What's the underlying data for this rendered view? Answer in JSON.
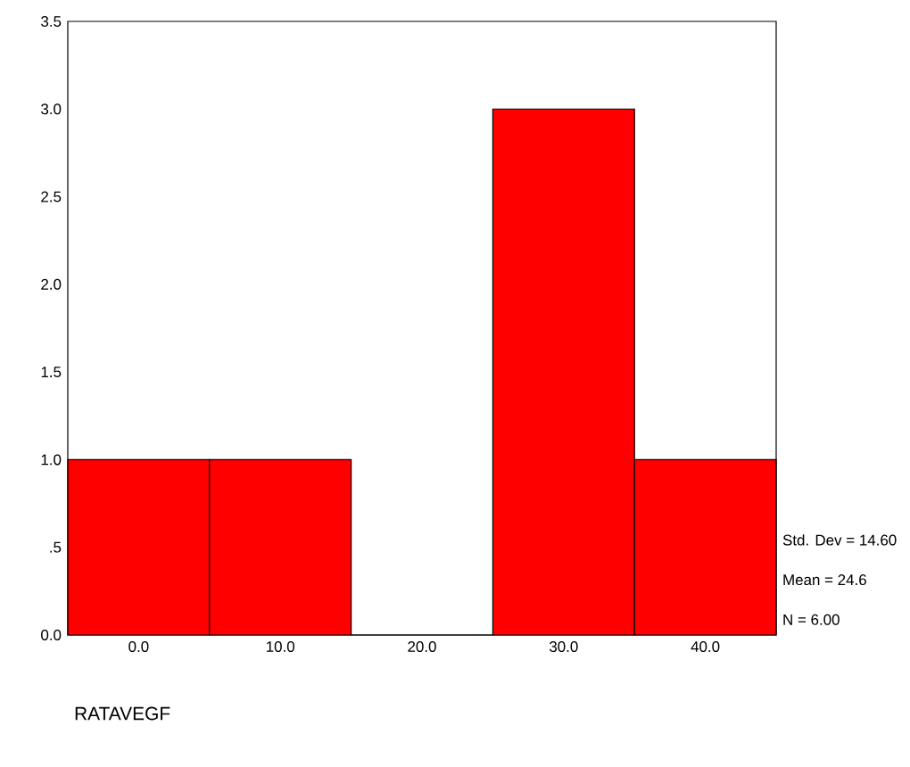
{
  "chart_data": {
    "type": "histogram",
    "xlabel": "RATAVEGF",
    "bins": [
      -5,
      5,
      15,
      25,
      35,
      45
    ],
    "values": [
      1,
      1,
      0,
      3,
      1
    ],
    "color": "#ff0000",
    "xlim": [
      -5,
      45
    ],
    "ylim": [
      0,
      3.5
    ],
    "xticks": [
      {
        "value": 0,
        "label": "0.0"
      },
      {
        "value": 10,
        "label": "10.0"
      },
      {
        "value": 20,
        "label": "20.0"
      },
      {
        "value": 30,
        "label": "30.0"
      },
      {
        "value": 40,
        "label": "40.0"
      }
    ],
    "yticks": [
      {
        "value": 0,
        "label": "0.0"
      },
      {
        "value": 0.5,
        "label": ".5"
      },
      {
        "value": 1,
        "label": "1.0"
      },
      {
        "value": 1.5,
        "label": "1.5"
      },
      {
        "value": 2,
        "label": "2.0"
      },
      {
        "value": 2.5,
        "label": "2.5"
      },
      {
        "value": 3,
        "label": "3.0"
      },
      {
        "value": 3.5,
        "label": "3.5"
      }
    ],
    "annotations": [
      "Std. Dev = 14.60",
      "Mean = 24.6",
      "N = 6.00"
    ]
  }
}
